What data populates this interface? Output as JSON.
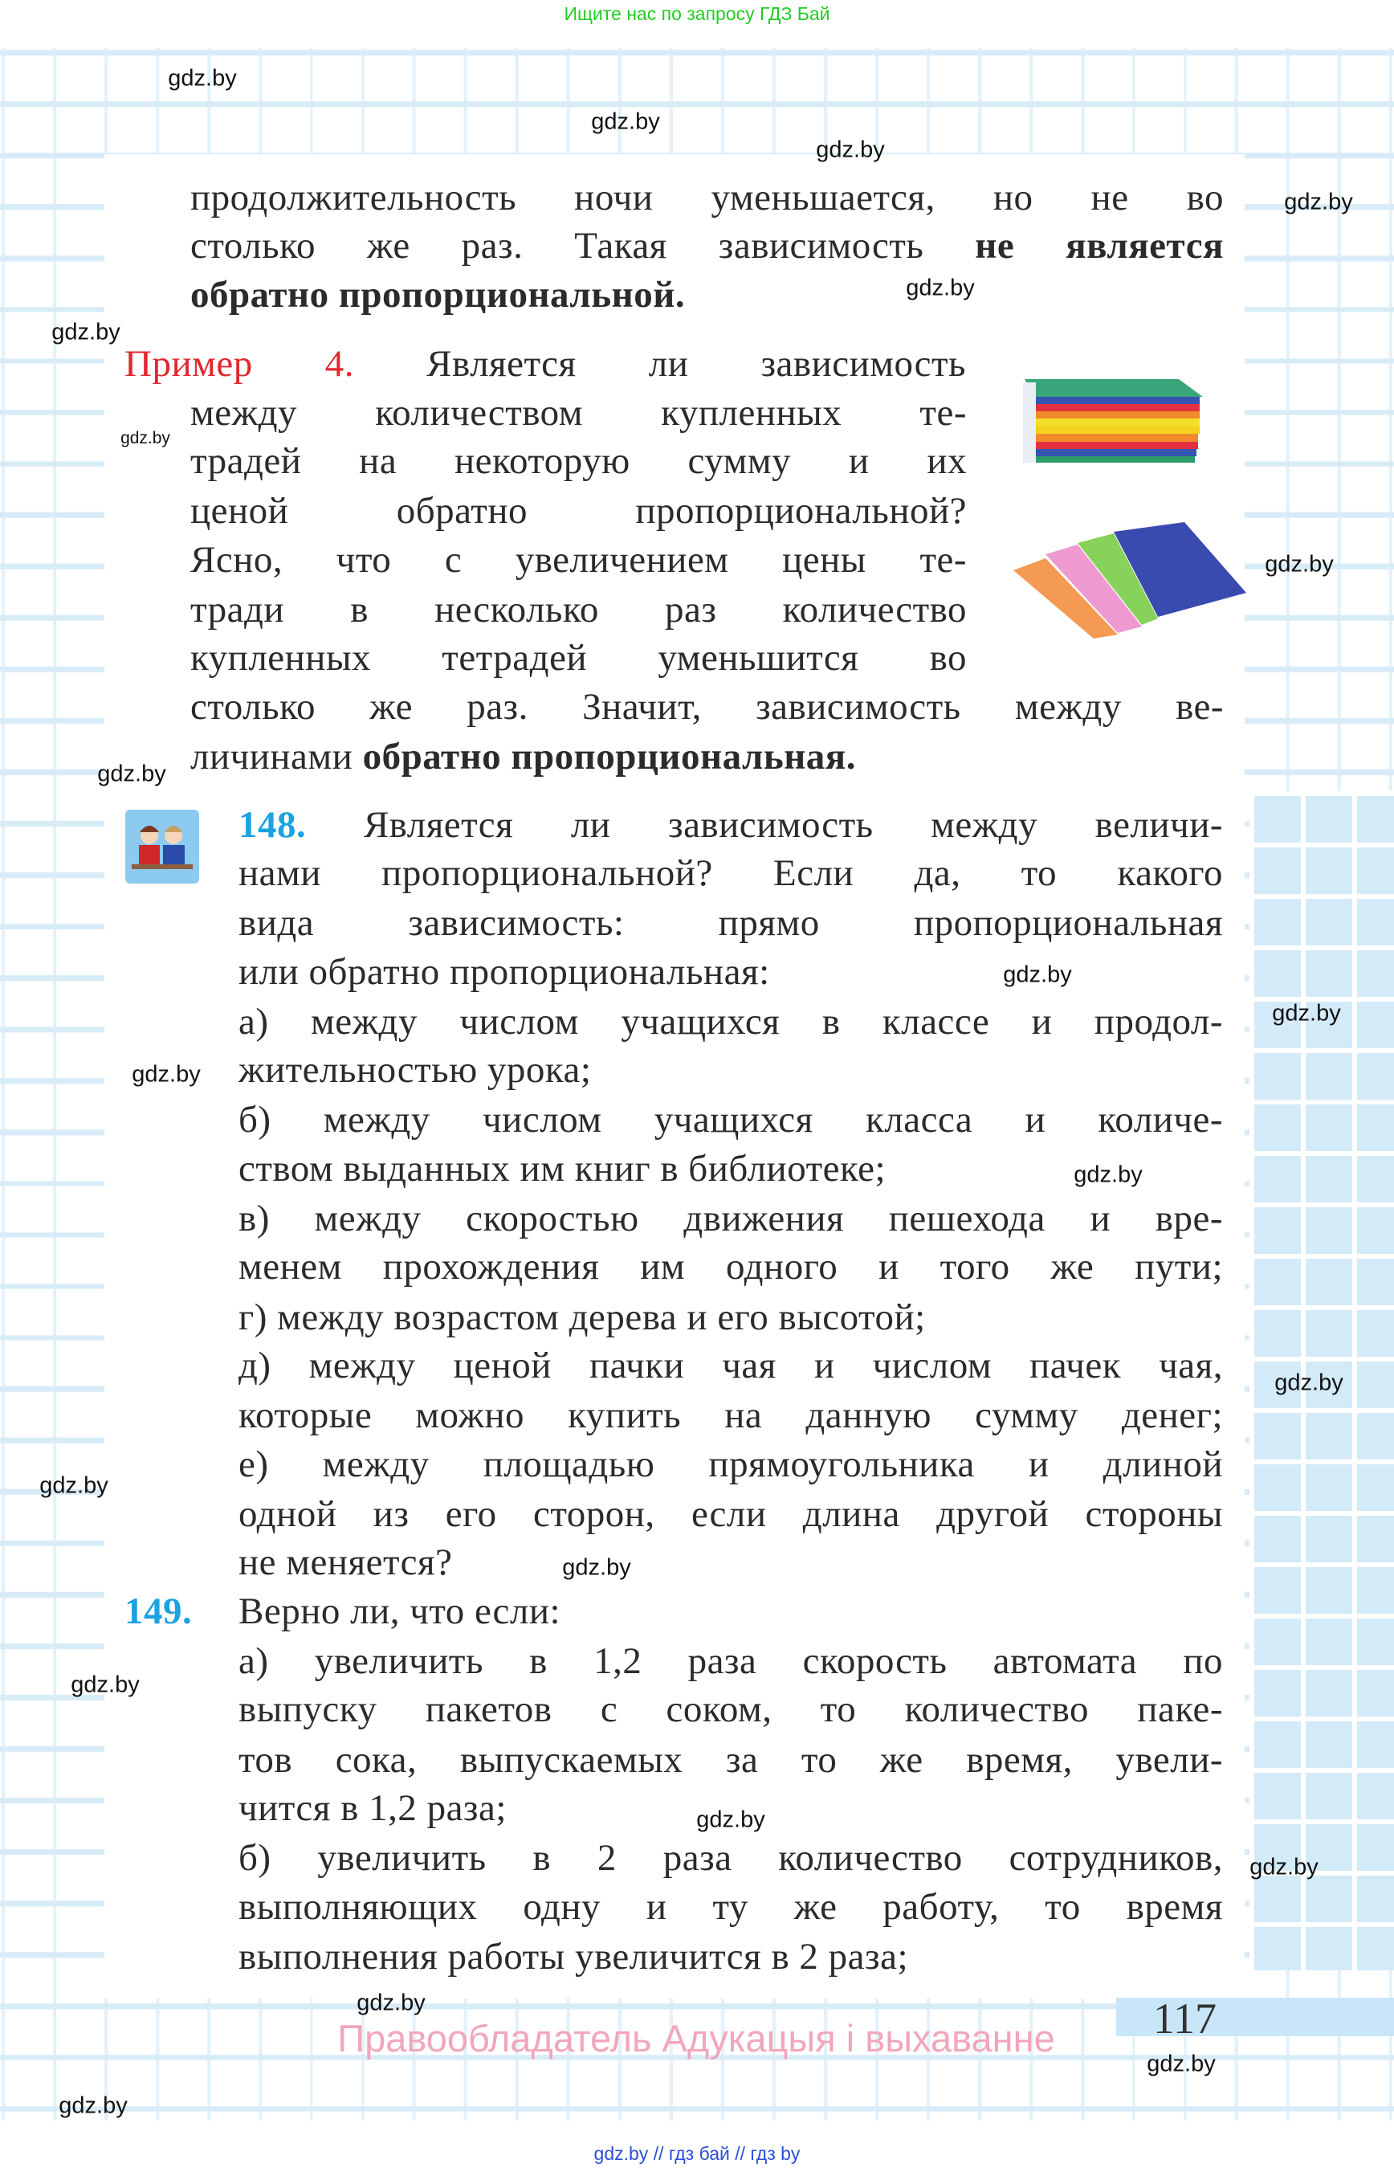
{
  "top_note": "Ищите нас по запросу ГДЗ Бай",
  "bottom_note": "gdz.by // гдз бай // гдз by",
  "copyright": "Правообладатель Адукацыя і выхаванне",
  "page_number": "117",
  "watermark": "gdz.by",
  "colors": {
    "accent_red": "#e0282e",
    "accent_blue": "#1aa3e0",
    "grid": "#d8ecf8",
    "copyright_pink": "#f2a6bb",
    "top_note_green": "#22cc22"
  },
  "icons": {
    "exercise_icon": "two-pupils-at-desk",
    "notebook_stack": "stack-of-colored-notebooks",
    "notebook_fan": "fanned-notebooks"
  },
  "lines": [
    [
      {
        "t": "продолжительность ночи уменьшается, но не во"
      }
    ],
    [
      {
        "t": "столько же раз. Такая зависимость "
      },
      {
        "t": "не является",
        "s": "b"
      }
    ],
    [
      {
        "t": "обратно пропорциональной.",
        "s": "b"
      }
    ],
    [
      {
        "t": "Пример 4.",
        "s": "red"
      },
      {
        "t": " Является ли зависимость"
      }
    ],
    [
      {
        "t": "между количеством купленных те-"
      }
    ],
    [
      {
        "t": "традей на некоторую сумму и их"
      }
    ],
    [
      {
        "t": "ценой обратно пропорциональной?"
      }
    ],
    [
      {
        "t": "Ясно, что с увеличением цены те-"
      }
    ],
    [
      {
        "t": "тради в несколько раз количество"
      }
    ],
    [
      {
        "t": "купленных тетрадей уменьшится во"
      }
    ],
    [
      {
        "t": "столько же раз. Значит, зависимость между ве-"
      }
    ],
    [
      {
        "t": "личинами "
      },
      {
        "t": "обратно пропорциональная.",
        "s": "b"
      }
    ],
    [
      {
        "t": "148.",
        "s": "blue"
      },
      {
        "t": " Является ли зависимость между величи-"
      }
    ],
    [
      {
        "t": "нами пропорциональной? Если да, то какого"
      }
    ],
    [
      {
        "t": "вида зависимость: прямо пропорциональная"
      }
    ],
    [
      {
        "t": "или обратно пропорциональная:"
      }
    ],
    [
      {
        "t": "а) между числом учащихся в классе и продол-"
      }
    ],
    [
      {
        "t": "жительностью урока;"
      }
    ],
    [
      {
        "t": "б) между числом учащихся класса и количе-"
      }
    ],
    [
      {
        "t": "ством выданных им книг в библиотеке;"
      }
    ],
    [
      {
        "t": "в) между скоростью движения пешехода и вре-"
      }
    ],
    [
      {
        "t": "менем прохождения им одного и того же пути;"
      }
    ],
    [
      {
        "t": "г) между возрастом дерева и его высотой;"
      }
    ],
    [
      {
        "t": "д) между ценой пачки чая и числом пачек чая,"
      }
    ],
    [
      {
        "t": "которые можно купить на данную сумму денег;"
      }
    ],
    [
      {
        "t": "е) между площадью прямоугольника и длиной"
      }
    ],
    [
      {
        "t": "одной из его сторон, если длина другой стороны"
      }
    ],
    [
      {
        "t": "не меняется?"
      }
    ],
    [
      {
        "t": "149.",
        "s": "blue num149"
      },
      {
        "t": "Верно ли, что если:"
      }
    ],
    [
      {
        "t": "а) увеличить в 1,2 раза скорость автомата по"
      }
    ],
    [
      {
        "t": "выпуску пакетов с соком, то количество паке-"
      }
    ],
    [
      {
        "t": "тов сока, выпускаемых за то же время, увели-"
      }
    ],
    [
      {
        "t": "чится в 1,2 раза;"
      }
    ],
    [
      {
        "t": "б) увеличить в 2 раза количество сотрудников,"
      }
    ],
    [
      {
        "t": "выполняющих одну и ту же работу, то время"
      }
    ],
    [
      {
        "t": "выполнения работы увеличится в 2 раза;"
      }
    ]
  ]
}
